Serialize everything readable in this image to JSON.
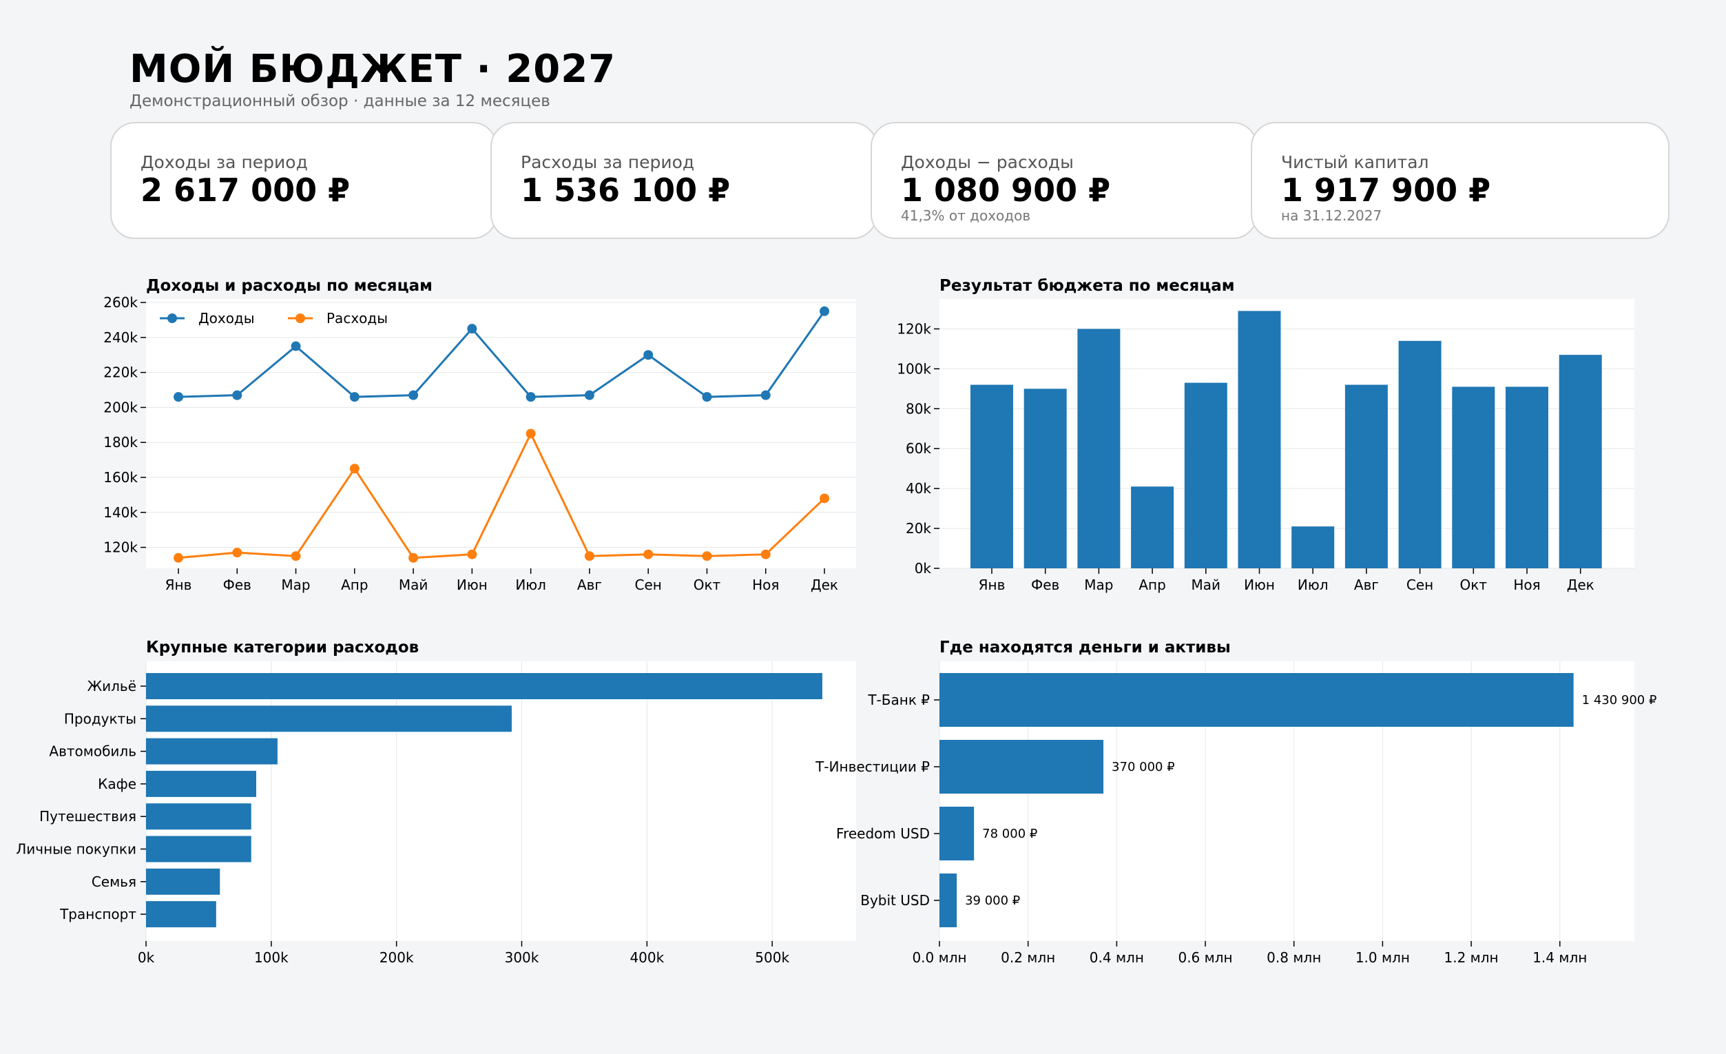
{
  "header": {
    "title": "МОЙ БЮДЖЕТ · 2027",
    "subtitle": "Демонстрационный обзор · данные за 12 месяцев"
  },
  "kpis": [
    {
      "label": "Доходы за период",
      "value": "2 617 000 ₽",
      "note": ""
    },
    {
      "label": "Расходы за период",
      "value": "1 536 100 ₽",
      "note": ""
    },
    {
      "label": "Доходы − расходы",
      "value": "1 080 900 ₽",
      "note": "41,3% от доходов"
    },
    {
      "label": "Чистый капитал",
      "value": "1 917 900 ₽",
      "note": "на 31.12.2027"
    }
  ],
  "colors": {
    "blue": "#1f77b4",
    "orange": "#ff7f0e",
    "grid": "#e6e6e6"
  },
  "chart_data": [
    {
      "type": "line",
      "title": "Доходы и расходы по месяцам",
      "categories": [
        "Янв",
        "Фев",
        "Мар",
        "Апр",
        "Май",
        "Июн",
        "Июл",
        "Авг",
        "Сен",
        "Окт",
        "Ноя",
        "Дек"
      ],
      "series": [
        {
          "name": "Доходы",
          "color": "#1f77b4",
          "values": [
            206000,
            207000,
            235000,
            206000,
            207000,
            245000,
            206000,
            207000,
            230000,
            206000,
            207000,
            255000
          ]
        },
        {
          "name": "Расходы",
          "color": "#ff7f0e",
          "values": [
            114000,
            117000,
            115000,
            165000,
            114000,
            116000,
            185000,
            115000,
            116000,
            115000,
            116000,
            148000
          ]
        }
      ],
      "ylim": [
        108000,
        262000
      ],
      "yticks": [
        120000,
        140000,
        160000,
        180000,
        200000,
        220000,
        240000,
        260000
      ],
      "ytick_labels": [
        "120k",
        "140k",
        "160k",
        "180k",
        "200k",
        "220k",
        "240k",
        "260k"
      ],
      "legend": "top-left",
      "grid": true
    },
    {
      "type": "bar",
      "title": "Результат бюджета по месяцам",
      "categories": [
        "Янв",
        "Фев",
        "Мар",
        "Апр",
        "Май",
        "Июн",
        "Июл",
        "Авг",
        "Сен",
        "Окт",
        "Ноя",
        "Дек"
      ],
      "values": [
        92000,
        90000,
        120000,
        41000,
        93000,
        129000,
        21000,
        92000,
        114000,
        91000,
        91000,
        107000
      ],
      "ylim": [
        0,
        135000
      ],
      "yticks": [
        0,
        20000,
        40000,
        60000,
        80000,
        100000,
        120000
      ],
      "ytick_labels": [
        "0k",
        "20k",
        "40k",
        "60k",
        "80k",
        "100k",
        "120k"
      ],
      "grid": true
    },
    {
      "type": "bar",
      "orientation": "horizontal",
      "title": "Крупные категории расходов",
      "categories": [
        "Жильё",
        "Продукты",
        "Автомобиль",
        "Кафе",
        "Путешествия",
        "Личные покупки",
        "Семья",
        "Транспорт"
      ],
      "values": [
        540000,
        292000,
        105000,
        88000,
        84000,
        84000,
        59000,
        56000
      ],
      "xlim": [
        0,
        567000
      ],
      "xticks": [
        0,
        100000,
        200000,
        300000,
        400000,
        500000
      ],
      "xtick_labels": [
        "0k",
        "100k",
        "200k",
        "300k",
        "400k",
        "500k"
      ],
      "grid": true
    },
    {
      "type": "bar",
      "orientation": "horizontal",
      "title": "Где находятся деньги и активы",
      "categories": [
        "Т-Банк ₽",
        "Т-Инвестиции ₽",
        "Freedom USD",
        "Bybit USD"
      ],
      "values": [
        1430900,
        370000,
        78000,
        39000
      ],
      "value_labels": [
        "1 430 900 ₽",
        "370 000 ₽",
        "78 000 ₽",
        "39 000 ₽"
      ],
      "xlim": [
        0,
        1500000
      ],
      "xticks": [
        0,
        200000,
        400000,
        600000,
        800000,
        1000000,
        1200000,
        1400000
      ],
      "xtick_labels": [
        "0.0 млн",
        "0.2 млн",
        "0.4 млн",
        "0.6 млн",
        "0.8 млн",
        "1.0 млн",
        "1.2 млн",
        "1.4 млн"
      ],
      "grid": true
    }
  ]
}
